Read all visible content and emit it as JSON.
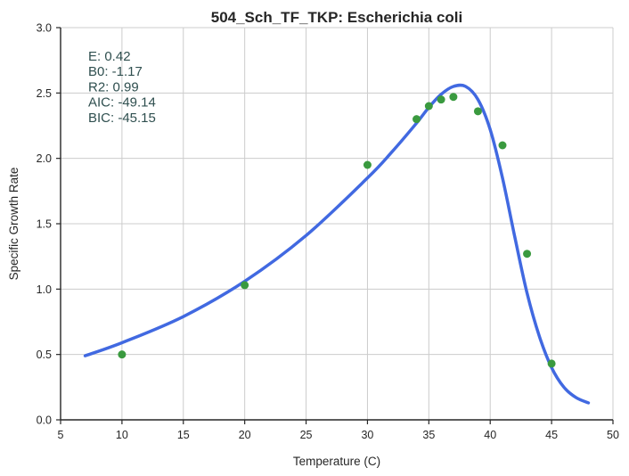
{
  "chart_data": {
    "type": "scatter",
    "title": "504_Sch_TF_TKP: Escherichia coli",
    "xlabel": "Temperature (C)",
    "ylabel": "Specific Growth Rate",
    "xlim": [
      5,
      50
    ],
    "ylim": [
      0.0,
      3.0
    ],
    "xticks": [
      "5",
      "10",
      "15",
      "20",
      "25",
      "30",
      "35",
      "40",
      "45",
      "50"
    ],
    "yticks": [
      "0.0",
      "0.5",
      "1.0",
      "1.5",
      "2.0",
      "2.5",
      "3.0"
    ],
    "grid": true,
    "annotation": {
      "lines": [
        "E:  0.42",
        "B0:  -1.17",
        "R2:  0.99",
        "AIC: -49.14",
        "BIC: -45.15"
      ],
      "position": "top-left"
    },
    "series": [
      {
        "kind": "points",
        "color": "#3a9a3f",
        "x": [
          10,
          20,
          30,
          34,
          35,
          36,
          37,
          39,
          41,
          43,
          45
        ],
        "y": [
          0.5,
          1.03,
          1.95,
          2.3,
          2.4,
          2.45,
          2.47,
          2.36,
          2.1,
          1.27,
          0.43
        ]
      },
      {
        "kind": "line",
        "color": "#4169e1",
        "x": [
          7,
          10,
          15,
          20,
          25,
          30,
          32,
          34,
          35,
          36,
          37,
          38,
          39,
          40,
          41,
          42,
          43,
          44,
          45,
          46,
          47,
          48
        ],
        "y": [
          0.49,
          0.59,
          0.79,
          1.06,
          1.41,
          1.85,
          2.05,
          2.27,
          2.39,
          2.49,
          2.55,
          2.55,
          2.45,
          2.22,
          1.85,
          1.4,
          0.97,
          0.64,
          0.4,
          0.25,
          0.17,
          0.13
        ]
      }
    ]
  }
}
